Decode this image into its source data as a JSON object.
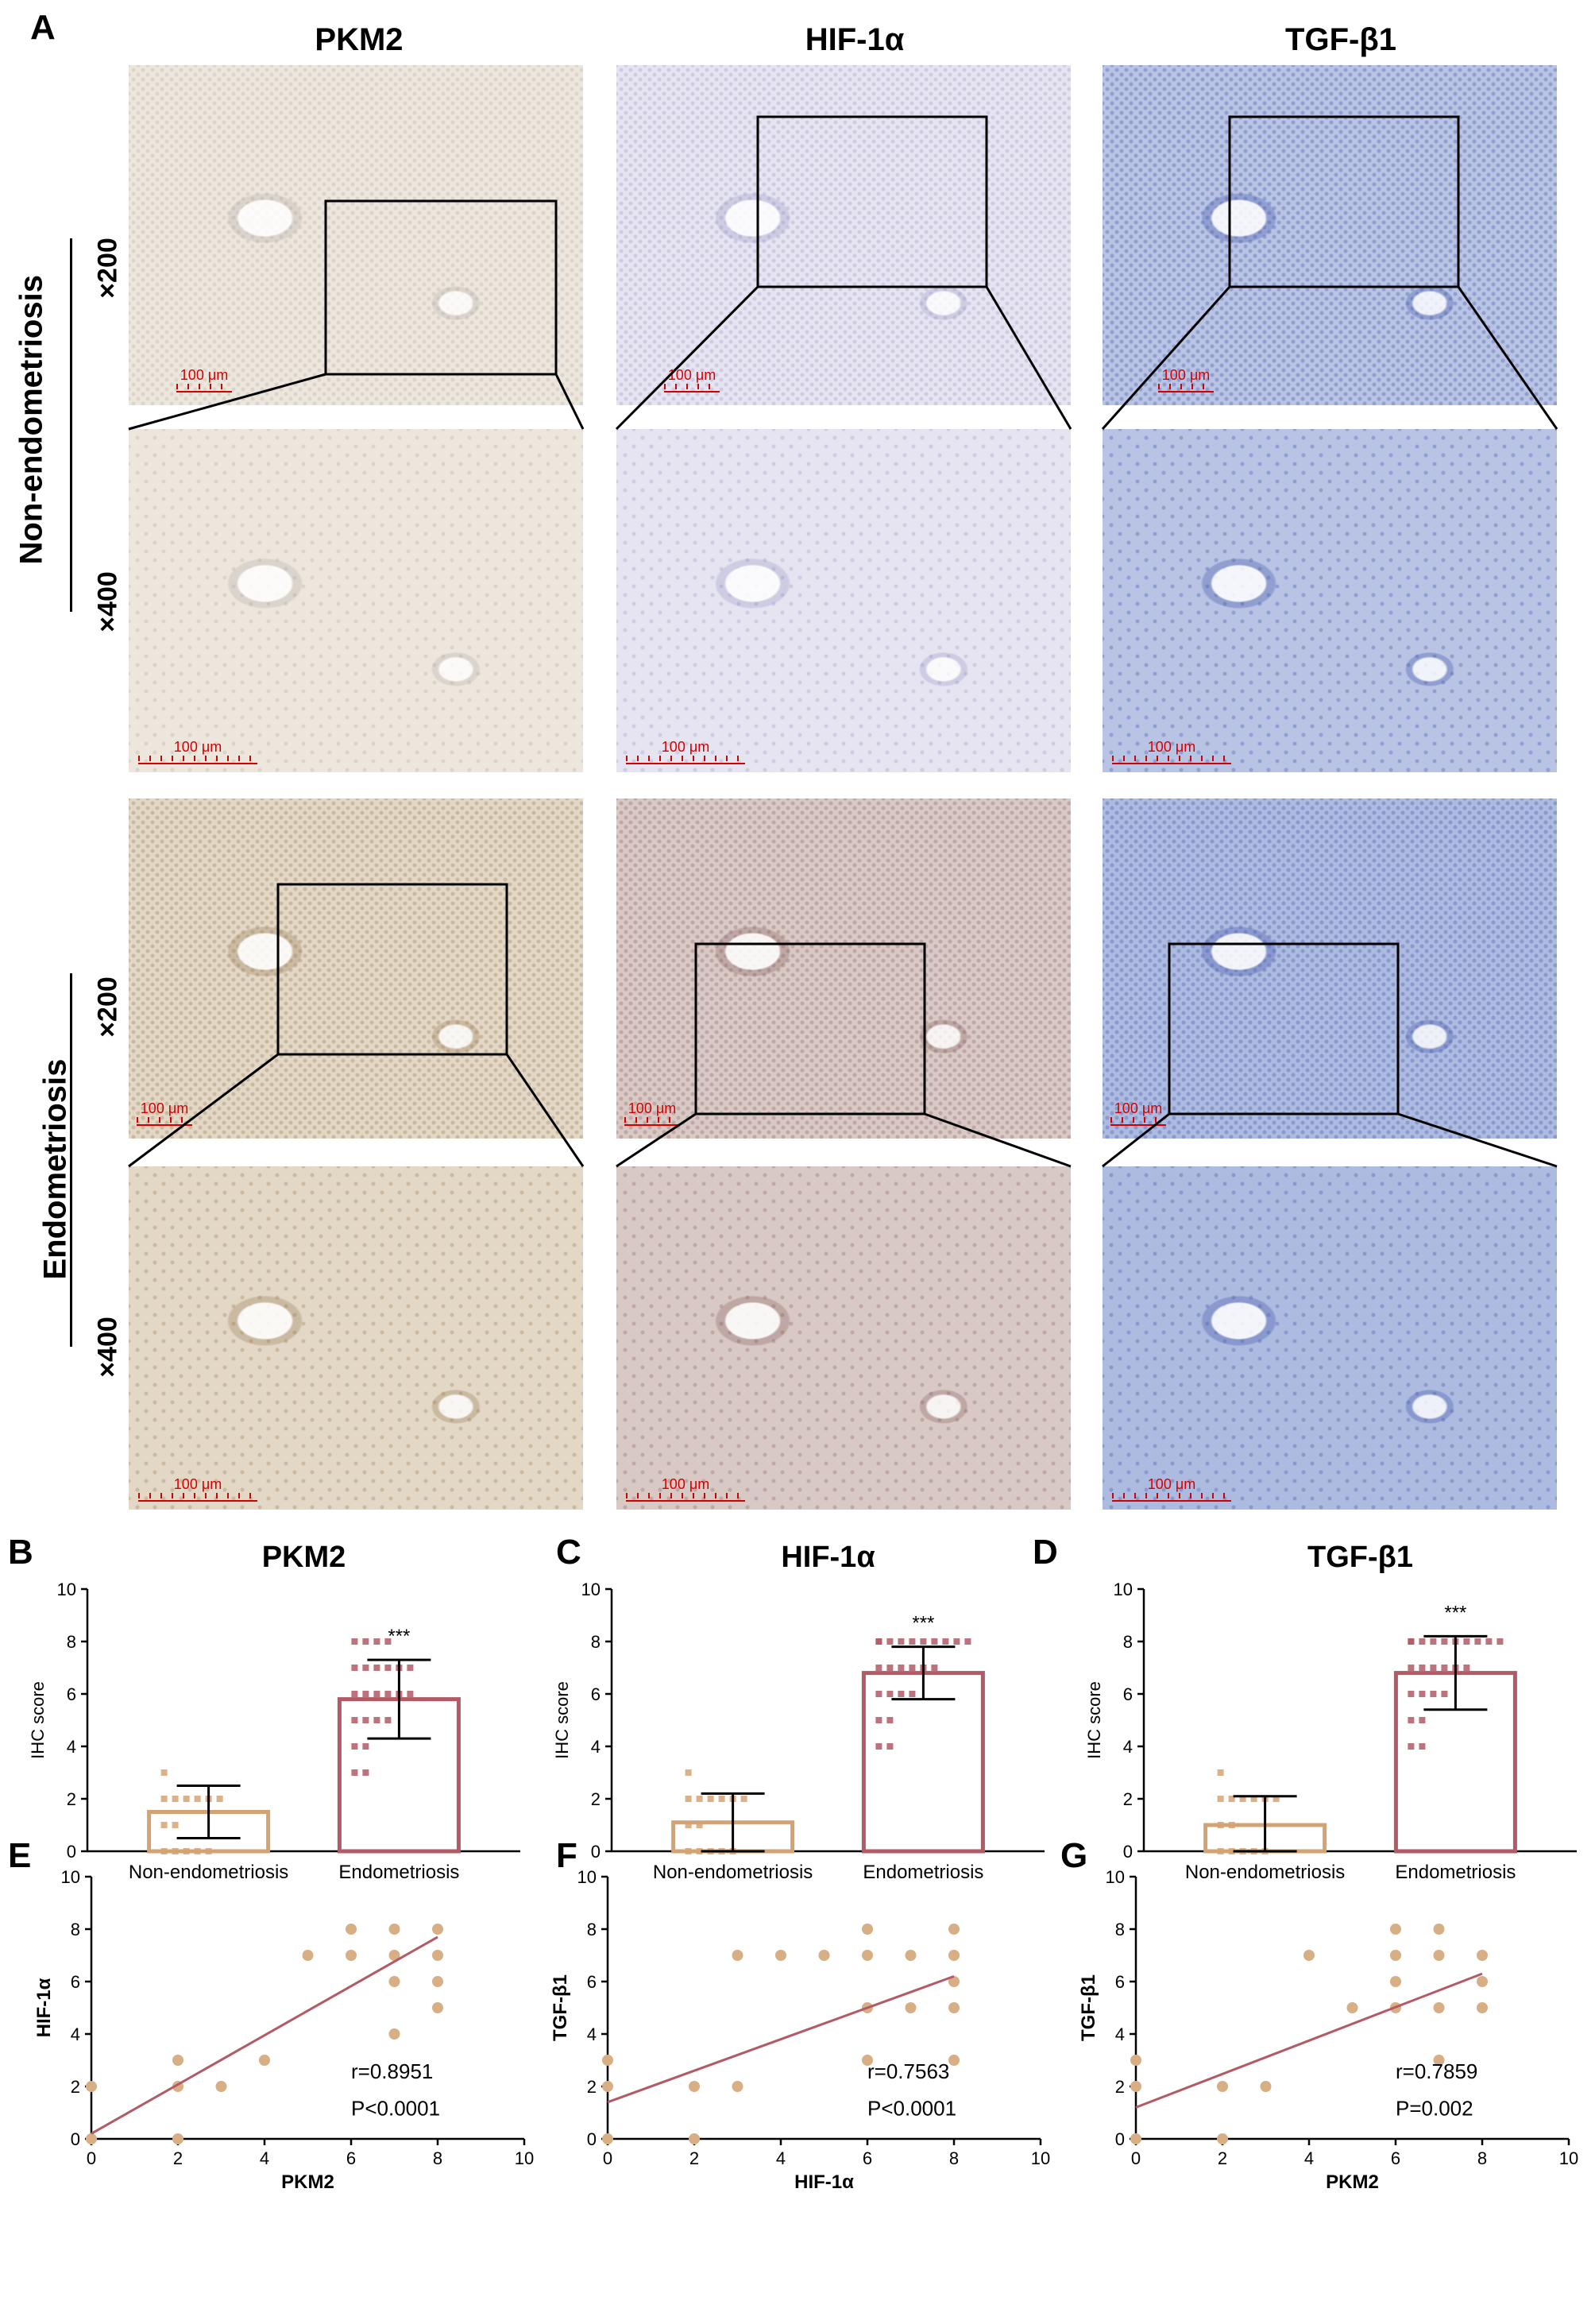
{
  "panel_a": {
    "letter": "A",
    "columns": [
      "PKM2",
      "HIF-1α",
      "TGF-β1"
    ],
    "groups": [
      "Non-endometriosis",
      "Endometriosis"
    ],
    "magnifications": [
      "×200",
      "×400"
    ],
    "scale_bar_label": "100 μm",
    "image_tints": {
      "PKM2_non": "#ece6dc",
      "HIF_non": "#e6e4f0",
      "TGF_non": "#b9c4e4",
      "PKM2_endo": "#e3d7c6",
      "HIF_endo": "#d9c9c5",
      "TGF_endo": "#aebbe0"
    }
  },
  "chart_data": [
    {
      "letter": "B",
      "type": "bar",
      "title": "PKM2",
      "ylabel": "IHC score",
      "ylim": [
        0,
        10
      ],
      "yticks": [
        0,
        2,
        4,
        6,
        8,
        10
      ],
      "categories": [
        "Non-endometriosis",
        "Endometriosis"
      ],
      "values": [
        1.5,
        5.8
      ],
      "errors": [
        1.0,
        1.5
      ],
      "significance": "***",
      "colors": [
        "#d4a373",
        "#b25a66"
      ]
    },
    {
      "letter": "C",
      "type": "bar",
      "title": "HIF-1α",
      "ylabel": "IHC score",
      "ylim": [
        0,
        10
      ],
      "yticks": [
        0,
        2,
        4,
        6,
        8,
        10
      ],
      "categories": [
        "Non-endometriosis",
        "Endometriosis"
      ],
      "values": [
        1.1,
        6.8
      ],
      "errors": [
        1.1,
        1.0
      ],
      "significance": "***",
      "colors": [
        "#d4a373",
        "#b25a66"
      ]
    },
    {
      "letter": "D",
      "type": "bar",
      "title": "TGF-β1",
      "ylabel": "IHC score",
      "ylim": [
        0,
        10
      ],
      "yticks": [
        0,
        2,
        4,
        6,
        8,
        10
      ],
      "categories": [
        "Non-endometriosis",
        "Endometriosis"
      ],
      "values": [
        1.0,
        6.8
      ],
      "errors": [
        1.1,
        1.4
      ],
      "significance": "***",
      "colors": [
        "#d4a373",
        "#b25a66"
      ]
    },
    {
      "letter": "E",
      "type": "scatter",
      "xlabel": "PKM2",
      "ylabel": "HIF-1α",
      "xlim": [
        0,
        10
      ],
      "ylim": [
        0,
        10
      ],
      "xticks": [
        0,
        2,
        4,
        6,
        8,
        10
      ],
      "yticks": [
        0,
        2,
        4,
        6,
        8,
        10
      ],
      "points": [
        [
          0,
          2
        ],
        [
          0,
          0
        ],
        [
          2,
          3
        ],
        [
          2,
          2
        ],
        [
          2,
          0
        ],
        [
          3,
          2
        ],
        [
          4,
          3
        ],
        [
          5,
          7
        ],
        [
          6,
          8
        ],
        [
          6,
          7
        ],
        [
          7,
          8
        ],
        [
          7,
          7
        ],
        [
          7,
          6
        ],
        [
          7,
          4
        ],
        [
          8,
          8
        ],
        [
          8,
          7
        ],
        [
          8,
          6
        ],
        [
          8,
          5
        ]
      ],
      "fit": [
        [
          0,
          0.2
        ],
        [
          8,
          7.7
        ]
      ],
      "stats": [
        "r=0.8951",
        "P<0.0001"
      ],
      "point_color": "#d8ae84",
      "line_color": "#b25a66"
    },
    {
      "letter": "F",
      "type": "scatter",
      "xlabel": "HIF-1α",
      "ylabel": "TGF-β1",
      "xlim": [
        0,
        10
      ],
      "ylim": [
        0,
        10
      ],
      "xticks": [
        0,
        2,
        4,
        6,
        8,
        10
      ],
      "yticks": [
        0,
        2,
        4,
        6,
        8,
        10
      ],
      "points": [
        [
          0,
          3
        ],
        [
          0,
          2
        ],
        [
          0,
          0
        ],
        [
          2,
          2
        ],
        [
          2,
          0
        ],
        [
          3,
          7
        ],
        [
          3,
          2
        ],
        [
          4,
          7
        ],
        [
          5,
          7
        ],
        [
          6,
          8
        ],
        [
          6,
          7
        ],
        [
          6,
          5
        ],
        [
          6,
          3
        ],
        [
          7,
          7
        ],
        [
          7,
          5
        ],
        [
          8,
          8
        ],
        [
          8,
          7
        ],
        [
          8,
          6
        ],
        [
          8,
          5
        ],
        [
          8,
          3
        ]
      ],
      "fit": [
        [
          0,
          1.4
        ],
        [
          8,
          6.2
        ]
      ],
      "stats": [
        "r=0.7563",
        "P<0.0001"
      ],
      "point_color": "#d8ae84",
      "line_color": "#b25a66"
    },
    {
      "letter": "G",
      "type": "scatter",
      "xlabel": "PKM2",
      "ylabel": "TGF-β1",
      "xlim": [
        0,
        10
      ],
      "ylim": [
        0,
        10
      ],
      "xticks": [
        0,
        2,
        4,
        6,
        8,
        10
      ],
      "yticks": [
        0,
        2,
        4,
        6,
        8,
        10
      ],
      "points": [
        [
          0,
          3
        ],
        [
          0,
          2
        ],
        [
          0,
          0
        ],
        [
          2,
          2
        ],
        [
          2,
          0
        ],
        [
          3,
          2
        ],
        [
          4,
          7
        ],
        [
          5,
          5
        ],
        [
          6,
          8
        ],
        [
          6,
          7
        ],
        [
          6,
          6
        ],
        [
          6,
          5
        ],
        [
          7,
          8
        ],
        [
          7,
          7
        ],
        [
          7,
          5
        ],
        [
          7,
          3
        ],
        [
          8,
          7
        ],
        [
          8,
          6
        ],
        [
          8,
          5
        ]
      ],
      "fit": [
        [
          0,
          1.2
        ],
        [
          8,
          6.3
        ]
      ],
      "stats": [
        "r=0.7859",
        "P=0.002"
      ],
      "point_color": "#d8ae84",
      "line_color": "#b25a66"
    }
  ]
}
